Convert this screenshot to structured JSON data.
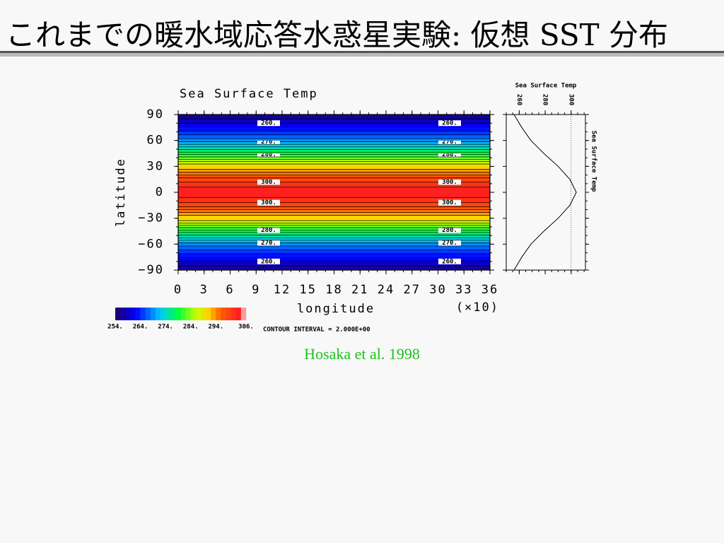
{
  "slide": {
    "title": "これまでの暖水域応答水惑星実験: 仮想 SST 分布",
    "citation": "Hosaka et al. 1998"
  },
  "chart_data": {
    "type": "contour",
    "title": "Sea Surface Temp",
    "xlabel": "longitude",
    "ylabel": "latitude",
    "x_scale_label": "(×10)",
    "xlim": [
      0,
      36
    ],
    "xticks": [
      0,
      3,
      6,
      9,
      12,
      15,
      18,
      21,
      24,
      27,
      30,
      33,
      36
    ],
    "ylim": [
      -90,
      90
    ],
    "yticks": [
      {
        "value": -90,
        "label": "−90"
      },
      {
        "value": -60,
        "label": "−60"
      },
      {
        "value": -30,
        "label": "−30"
      },
      0,
      30,
      60,
      90
    ],
    "latitude": [
      -90,
      -75,
      -60,
      -45,
      -30,
      -15,
      0,
      15,
      30,
      45,
      60,
      75,
      90
    ],
    "values": [
      256,
      262,
      269,
      279,
      290,
      299,
      304,
      299,
      290,
      279,
      269,
      262,
      256
    ],
    "contour_interval": {
      "value": 2,
      "label": "CONTOUR INTERVAL = 2.000E+00"
    },
    "colorbar_ticks": [
      {
        "value": 254,
        "label": "254."
      },
      {
        "value": 264,
        "label": "264."
      },
      {
        "value": 274,
        "label": "274."
      },
      {
        "value": 284,
        "label": "284."
      },
      {
        "value": 294,
        "label": "294."
      },
      {
        "value": 306,
        "label": "306."
      }
    ],
    "contour_labels": [
      {
        "value": 260,
        "label": "260."
      },
      {
        "value": 270,
        "label": "270."
      },
      {
        "value": 280,
        "label": "280."
      },
      {
        "value": 290,
        "label": "290."
      },
      {
        "value": 300,
        "label": "300."
      }
    ],
    "profile": {
      "title": "Sea Surface Temp",
      "ylabel": "Sea Surface Temp",
      "xlim": [
        250,
        311
      ],
      "xticks": [
        260,
        280,
        300
      ]
    }
  }
}
